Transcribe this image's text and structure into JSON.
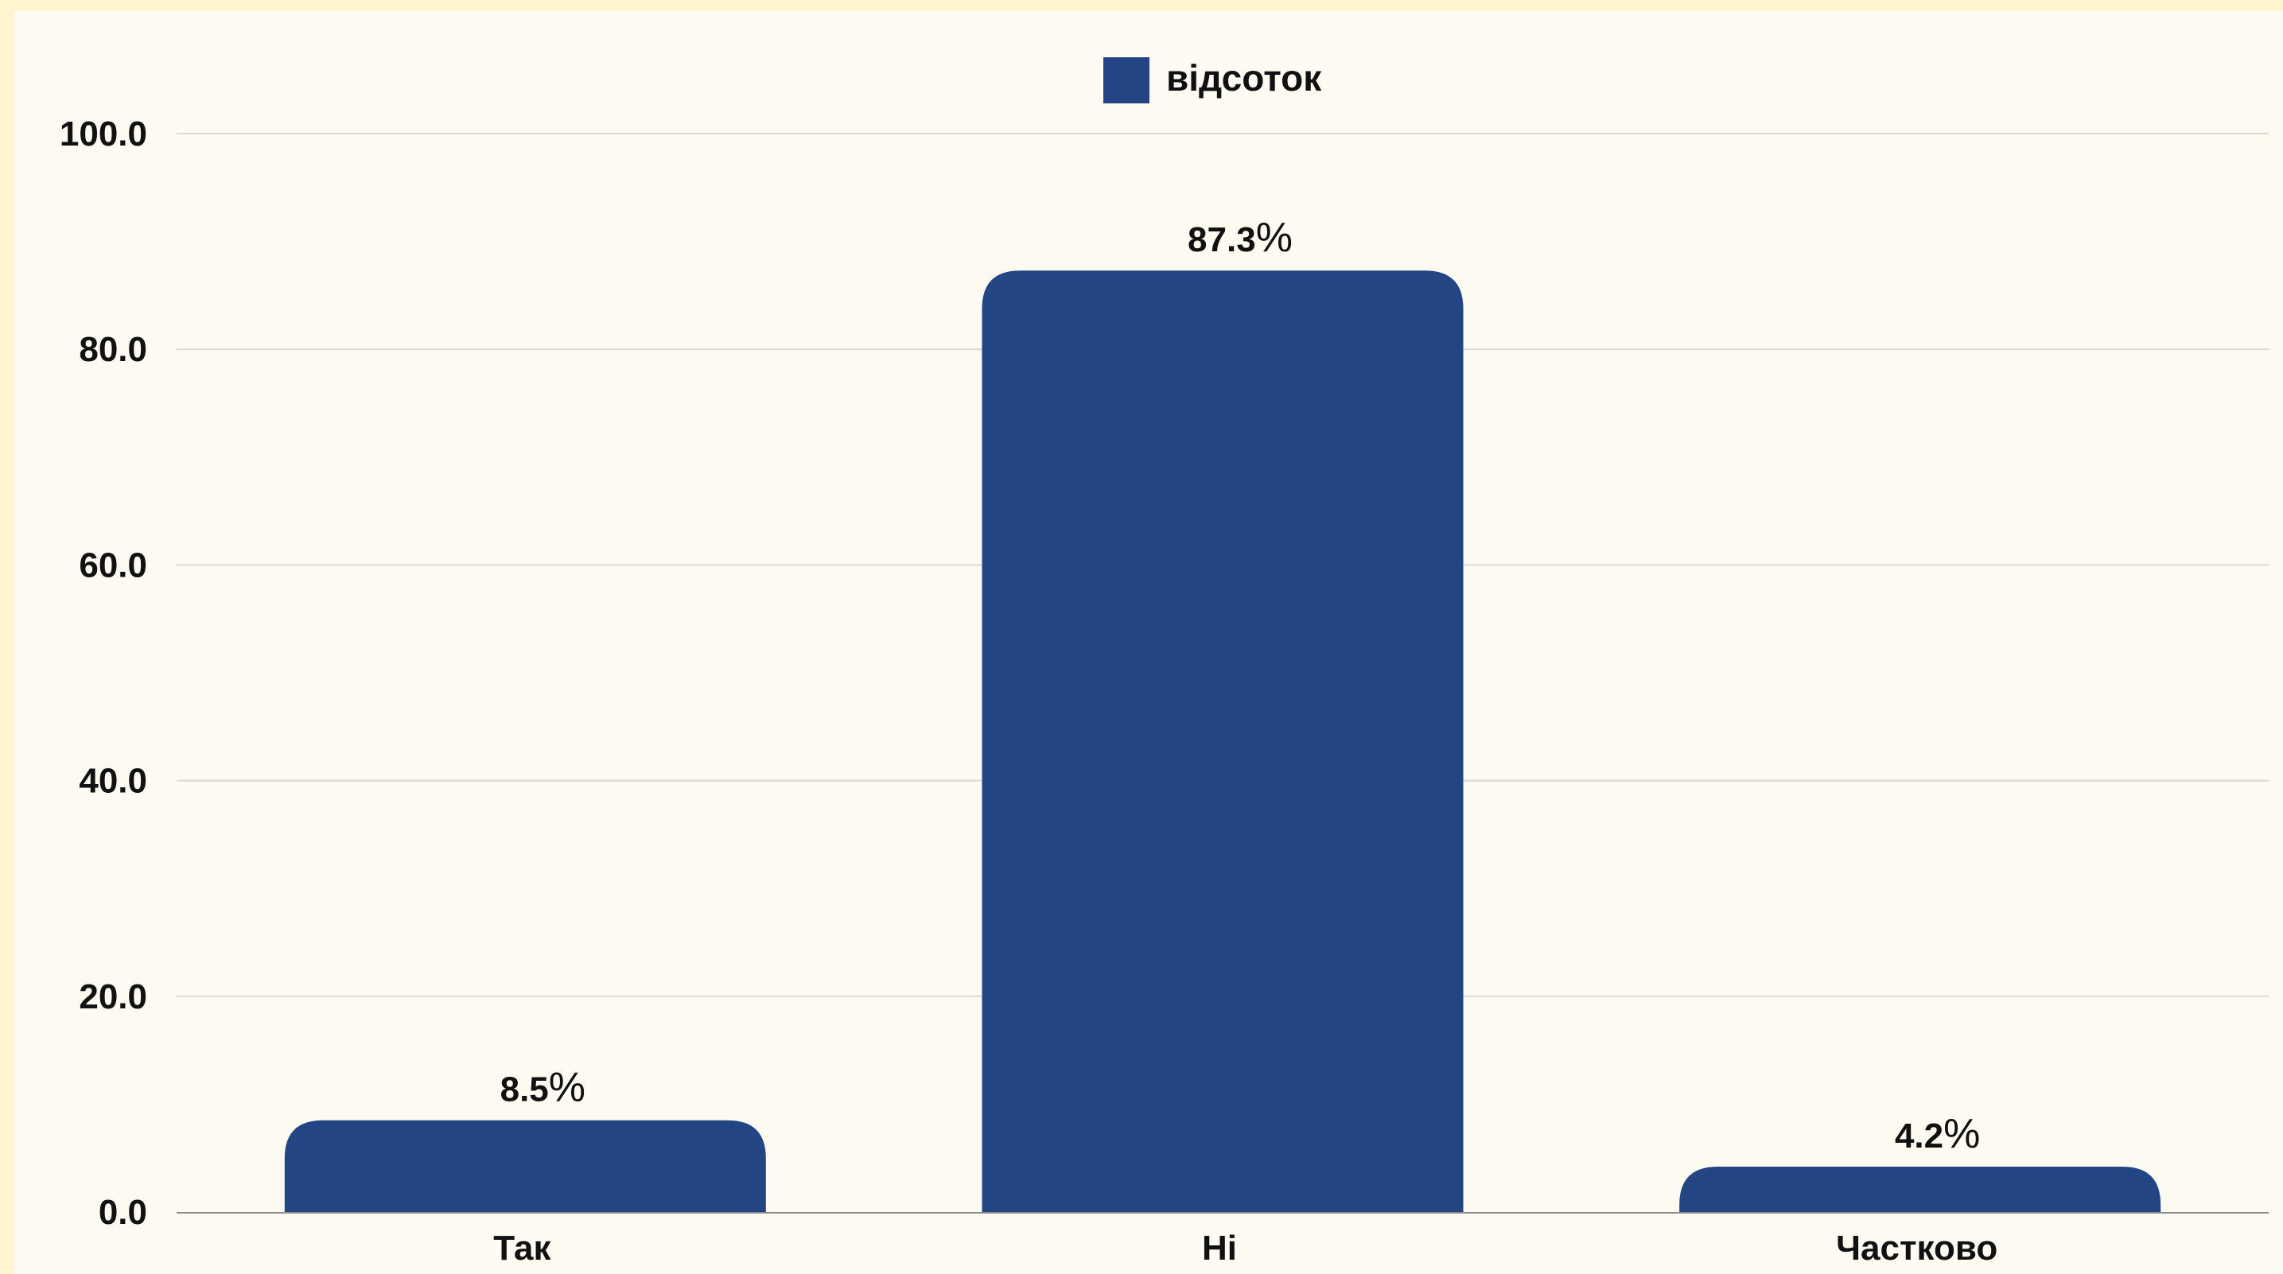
{
  "colors": {
    "bar": "#244584",
    "grid": "#d9d9d9",
    "background": "#fdfaf1",
    "border": "#fff6cf"
  },
  "chart_data": {
    "type": "bar",
    "categories": [
      "Так",
      "Ні",
      "Частково"
    ],
    "series": [
      {
        "name": "відсоток",
        "values": [
          8.5,
          87.3,
          4.2
        ],
        "labels": [
          "8.5",
          "87.3",
          "4.2"
        ],
        "label_suffix": "%"
      }
    ],
    "yticks": [
      "0.0",
      "20.0",
      "40.0",
      "60.0",
      "80.0",
      "100.0"
    ],
    "ylim": [
      0,
      100
    ],
    "grid": true,
    "legend_position": "top-center",
    "title": "",
    "xlabel": "",
    "ylabel": ""
  }
}
